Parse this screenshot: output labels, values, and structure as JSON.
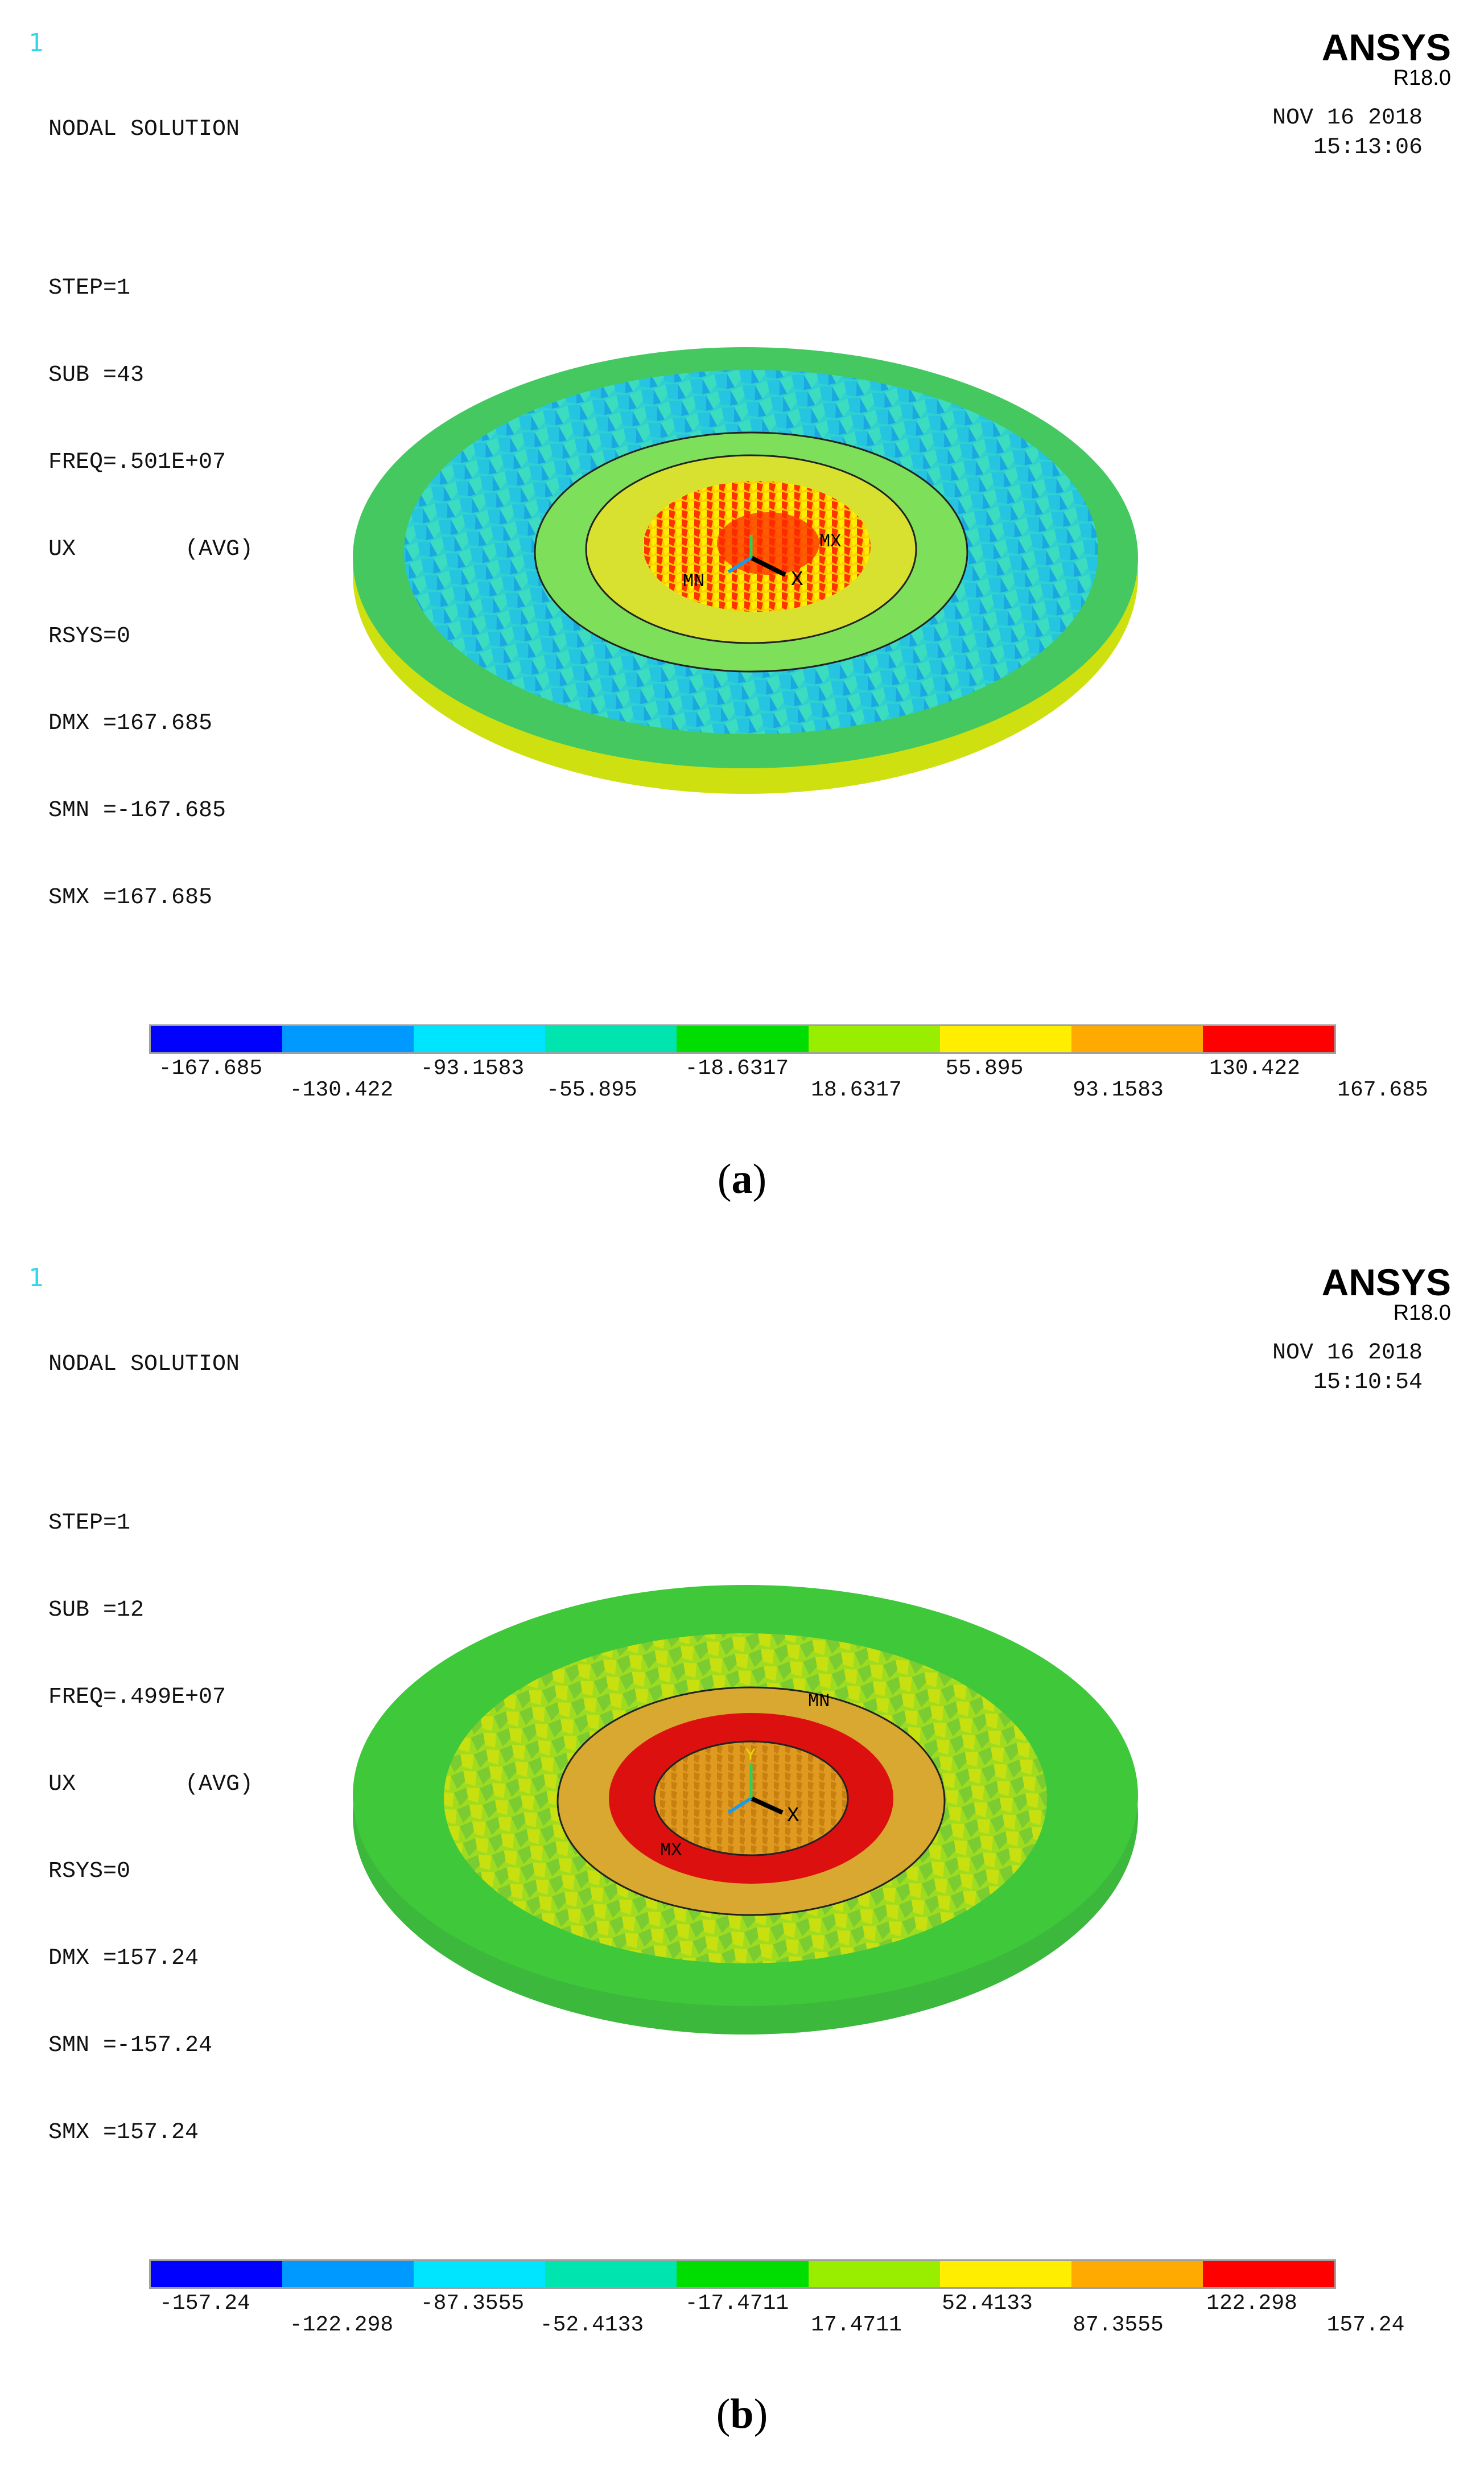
{
  "panels": [
    {
      "id": "a",
      "window_number": "1",
      "title": "NODAL SOLUTION",
      "step": "STEP=1",
      "sub": "SUB =43",
      "freq": "FREQ=.501E+07",
      "ux": "UX        (AVG)",
      "rsys": "RSYS=0",
      "dmx": "DMX =167.685",
      "smn": "SMN =-167.685",
      "smx": "SMX =167.685",
      "brand": "ANSYS",
      "version": "R18.0",
      "date": "NOV 16 2018",
      "time": "15:13:06",
      "mn_label": "MN",
      "mx_label": "MX",
      "axis_x": "X",
      "axis_y": "",
      "legend_top": [
        "-167.685",
        "-93.1583",
        "-18.6317",
        "55.895",
        "130.422"
      ],
      "legend_bottom": [
        "-130.422",
        "-55.895",
        "18.6317",
        "93.1583",
        "167.685"
      ],
      "caption_letter": "a",
      "contour_band_levels": [
        "green",
        "cyan",
        "cyan",
        "yellow",
        "red"
      ]
    },
    {
      "id": "b",
      "window_number": "1",
      "title": "NODAL SOLUTION",
      "step": "STEP=1",
      "sub": "SUB =12",
      "freq": "FREQ=.499E+07",
      "ux": "UX        (AVG)",
      "rsys": "RSYS=0",
      "dmx": "DMX =157.24",
      "smn": "SMN =-157.24",
      "smx": "SMX =157.24",
      "brand": "ANSYS",
      "version": "R18.0",
      "date": "NOV 16 2018",
      "time": "15:10:54",
      "mn_label": "MN",
      "mx_label": "MX",
      "axis_x": "X",
      "axis_y": "Y",
      "legend_top": [
        "-157.24",
        "-87.3555",
        "-17.4711",
        "52.4133",
        "122.298"
      ],
      "legend_bottom": [
        "-122.298",
        "-52.4133",
        "17.4711",
        "87.3555",
        "157.24"
      ],
      "caption_letter": "b"
    }
  ],
  "legend_colors": [
    "#0000ff",
    "#0099ff",
    "#00e5ff",
    "#00e5b0",
    "#00dd00",
    "#99ee00",
    "#ffee00",
    "#ffaa00",
    "#ff0000"
  ]
}
